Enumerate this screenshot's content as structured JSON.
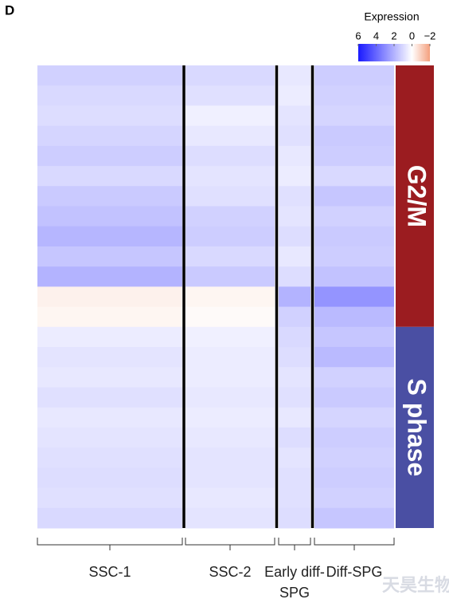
{
  "panel_label": "D",
  "watermark": "天昊生物",
  "chart_data": {
    "type": "heatmap",
    "categories": [
      "SSC-1",
      "SSC-2",
      "Early diff-SPG",
      "Diff-SPG"
    ],
    "colorbar": {
      "title": "Expression",
      "clim": [
        6,
        -2
      ],
      "ticks": [
        6,
        4,
        2,
        0,
        {
          "value": -2,
          "label": "−2"
        }
      ],
      "colors": {
        "high": "#1a1aff",
        "mid": "#ffffff",
        "low": "#f4a07e"
      }
    },
    "row_groups": [
      {
        "name": "G2/M",
        "color": "#9b1c20",
        "values": [
          [
            1.2,
            1.0,
            0.6,
            1.3
          ],
          [
            1.0,
            0.8,
            0.5,
            1.2
          ],
          [
            0.9,
            0.4,
            0.7,
            1.1
          ],
          [
            1.1,
            0.6,
            0.8,
            1.4
          ],
          [
            1.3,
            0.9,
            0.6,
            1.3
          ],
          [
            1.0,
            0.7,
            0.5,
            1.0
          ],
          [
            1.4,
            0.8,
            0.8,
            1.5
          ],
          [
            1.6,
            1.2,
            0.7,
            1.2
          ],
          [
            1.9,
            1.3,
            0.9,
            1.4
          ],
          [
            1.5,
            1.0,
            0.6,
            1.3
          ],
          [
            2.0,
            1.4,
            0.9,
            1.6
          ],
          [
            -0.3,
            -0.2,
            2.0,
            2.8
          ],
          [
            -0.2,
            -0.1,
            1.2,
            1.8
          ]
        ]
      },
      {
        "name": "S phase",
        "color": "#4a4fa3",
        "values": [
          [
            0.5,
            0.4,
            1.0,
            1.5
          ],
          [
            0.7,
            0.5,
            0.9,
            1.8
          ],
          [
            0.6,
            0.5,
            0.7,
            1.2
          ],
          [
            0.8,
            0.6,
            0.8,
            1.4
          ],
          [
            0.6,
            0.5,
            0.6,
            1.1
          ],
          [
            0.7,
            0.6,
            0.9,
            1.3
          ],
          [
            0.8,
            0.7,
            0.7,
            1.2
          ],
          [
            0.9,
            0.7,
            0.8,
            1.3
          ],
          [
            0.8,
            0.6,
            0.8,
            1.2
          ],
          [
            1.0,
            0.7,
            0.9,
            1.5
          ]
        ]
      }
    ]
  }
}
